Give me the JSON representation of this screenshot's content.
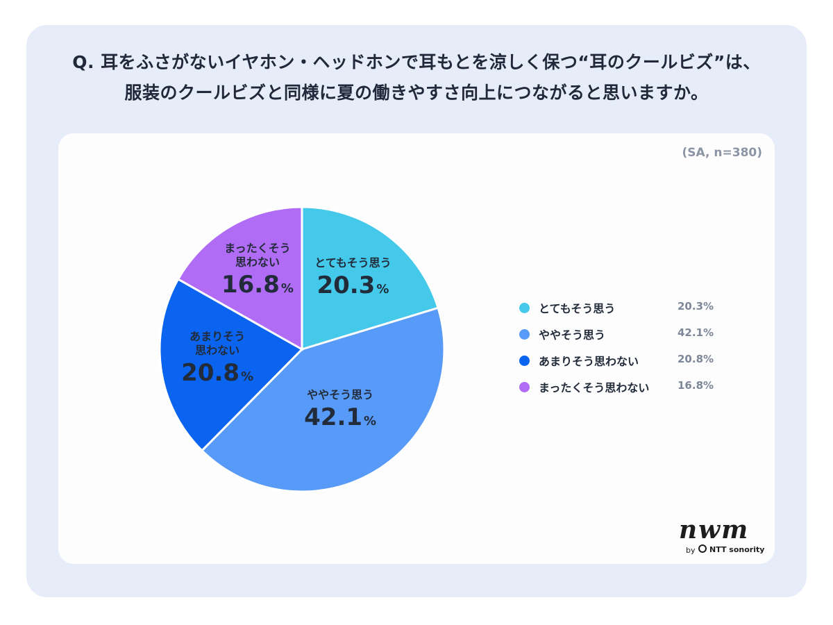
{
  "question": {
    "line1": "Q. 耳をふさがないイヤホン・ヘッドホンで耳もとを涼しく保つ“耳のクールビズ”は、",
    "line2": "服装のクールビズと同様に夏の働きやすさ向上につながると思いますか。"
  },
  "sample_note": "(SA, n=380)",
  "chart_data": {
    "type": "pie",
    "unit": "%",
    "categories": [
      "とてもそう思う",
      "ややそう思う",
      "あまりそう思わない",
      "まったくそう思わない"
    ],
    "values": [
      20.3,
      42.1,
      20.8,
      16.8
    ],
    "colors": [
      "#45c9ea",
      "#579af7",
      "#0a64f0",
      "#b06cf5"
    ],
    "slice_labels": [
      "とてもそう思う",
      "ややそう思う",
      "あまりそう\n思わない",
      "まったくそう\n思わない"
    ],
    "value_labels": [
      "20.3",
      "42.1",
      "20.8",
      "16.8"
    ],
    "legend": {
      "position": "right",
      "items": [
        {
          "label": "とてもそう思う",
          "value": "20.3%"
        },
        {
          "label": "ややそう思う",
          "value": "42.1%"
        },
        {
          "label": "あまりそう思わない",
          "value": "20.8%"
        },
        {
          "label": "まったくそう思わない",
          "value": "16.8%"
        }
      ]
    }
  },
  "brand": {
    "logo_text": "nwm",
    "by": "by",
    "company": "NTT sonority"
  }
}
